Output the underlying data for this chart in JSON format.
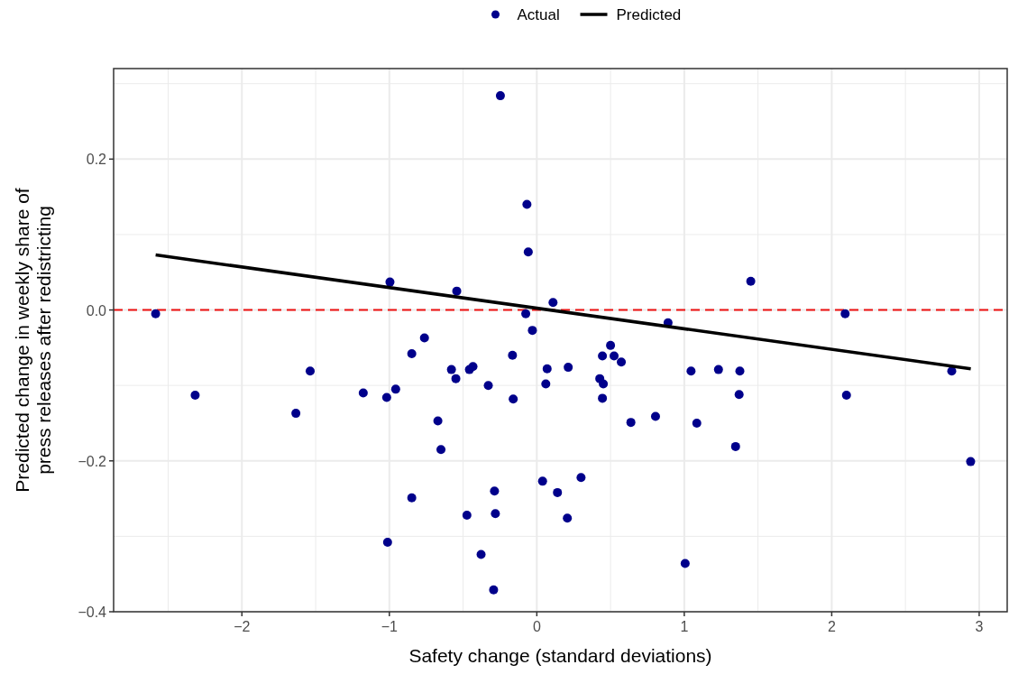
{
  "chart_data": {
    "type": "scatter",
    "xlabel": "Safety change (standard deviations)",
    "ylabel": "Predicted change in weekly share of\npress releases after redistricting",
    "xlim": [
      -2.87,
      3.19
    ],
    "ylim": [
      -0.4,
      0.32
    ],
    "xticks": [
      {
        "value": -2,
        "label": "−2"
      },
      {
        "value": -1,
        "label": "−1"
      },
      0,
      1,
      2,
      3
    ],
    "yticks": [
      {
        "value": -0.4,
        "label": "−0.4"
      },
      {
        "value": -0.2,
        "label": "−0.2"
      },
      {
        "value": 0,
        "label": "0.0"
      },
      0.2
    ],
    "grid": true,
    "legend": "top",
    "marker": "circle",
    "ref_lines": [
      {
        "axis": "y",
        "value": 0,
        "color": "#ee1111",
        "line_style": "dashed"
      }
    ],
    "series": [
      {
        "name": "Actual",
        "color": "#00008b",
        "x": [
          -2.585,
          -2.317,
          -1.634,
          -1.537,
          -1.177,
          -1.018,
          -1.012,
          -0.996,
          -0.957,
          -0.848,
          -0.848,
          -0.762,
          -0.671,
          -0.65,
          -0.579,
          -0.549,
          -0.543,
          -0.474,
          -0.457,
          -0.433,
          -0.378,
          -0.329,
          -0.287,
          -0.293,
          -0.281,
          -0.247,
          -0.165,
          -0.16,
          -0.075,
          -0.067,
          -0.058,
          -0.03,
          0.039,
          0.061,
          0.07,
          0.11,
          0.14,
          0.3,
          0.207,
          0.213,
          0.445,
          0.5,
          0.524,
          0.573,
          0.427,
          0.451,
          0.445,
          0.638,
          0.805,
          0.89,
          1.046,
          1.085,
          1.006,
          1.232,
          1.377,
          1.372,
          1.348,
          1.451,
          2.091,
          2.1,
          2.814,
          2.942
        ],
        "values": [
          -0.005,
          -0.113,
          -0.137,
          -0.081,
          -0.11,
          -0.116,
          -0.308,
          0.037,
          -0.105,
          -0.058,
          -0.249,
          -0.037,
          -0.147,
          -0.185,
          -0.079,
          -0.091,
          0.025,
          -0.272,
          -0.079,
          -0.075,
          -0.324,
          -0.1,
          -0.24,
          -0.371,
          -0.27,
          0.284,
          -0.06,
          -0.118,
          -0.005,
          0.14,
          0.077,
          -0.027,
          -0.227,
          -0.098,
          -0.078,
          0.01,
          -0.242,
          -0.222,
          -0.276,
          -0.076,
          -0.061,
          -0.047,
          -0.061,
          -0.069,
          -0.091,
          -0.098,
          -0.117,
          -0.149,
          -0.141,
          -0.017,
          -0.081,
          -0.15,
          -0.336,
          -0.079,
          -0.081,
          -0.112,
          -0.181,
          0.038,
          -0.005,
          -0.113,
          -0.081,
          -0.201
        ]
      },
      {
        "name": "Predicted",
        "type": "line",
        "color": "#000000",
        "marker": "none",
        "x": [
          -2.585,
          2.943
        ],
        "values": [
          0.073,
          -0.078
        ]
      }
    ]
  }
}
